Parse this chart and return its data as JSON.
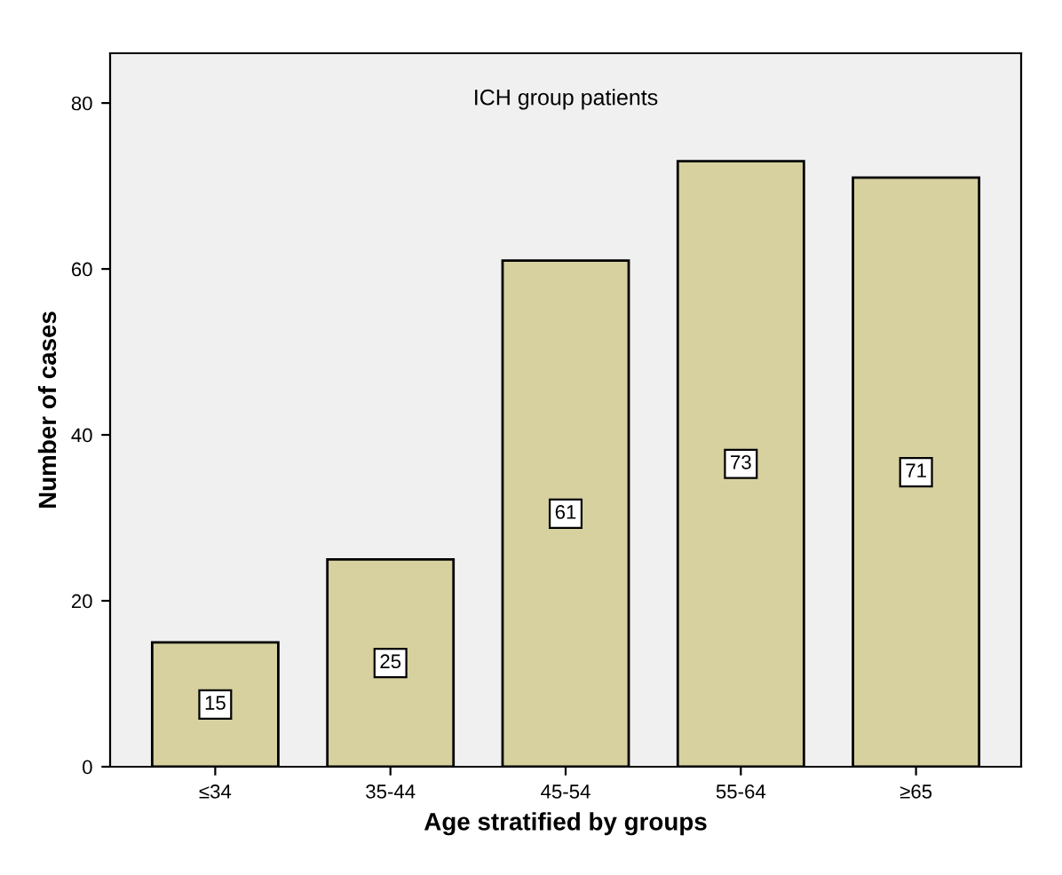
{
  "chart_data": {
    "type": "bar",
    "title": "ICH group patients",
    "xlabel": "Age stratified by groups",
    "ylabel": "Number of cases",
    "categories": [
      "≤34",
      "35-44",
      "45-54",
      "55-64",
      "≥65"
    ],
    "values": [
      15,
      25,
      61,
      73,
      71
    ],
    "color": "#d6d19e",
    "ylim": [
      0,
      86
    ],
    "yticks": [
      0,
      20,
      40,
      60,
      80
    ],
    "data_labels": true,
    "grid": false,
    "legend": false
  }
}
